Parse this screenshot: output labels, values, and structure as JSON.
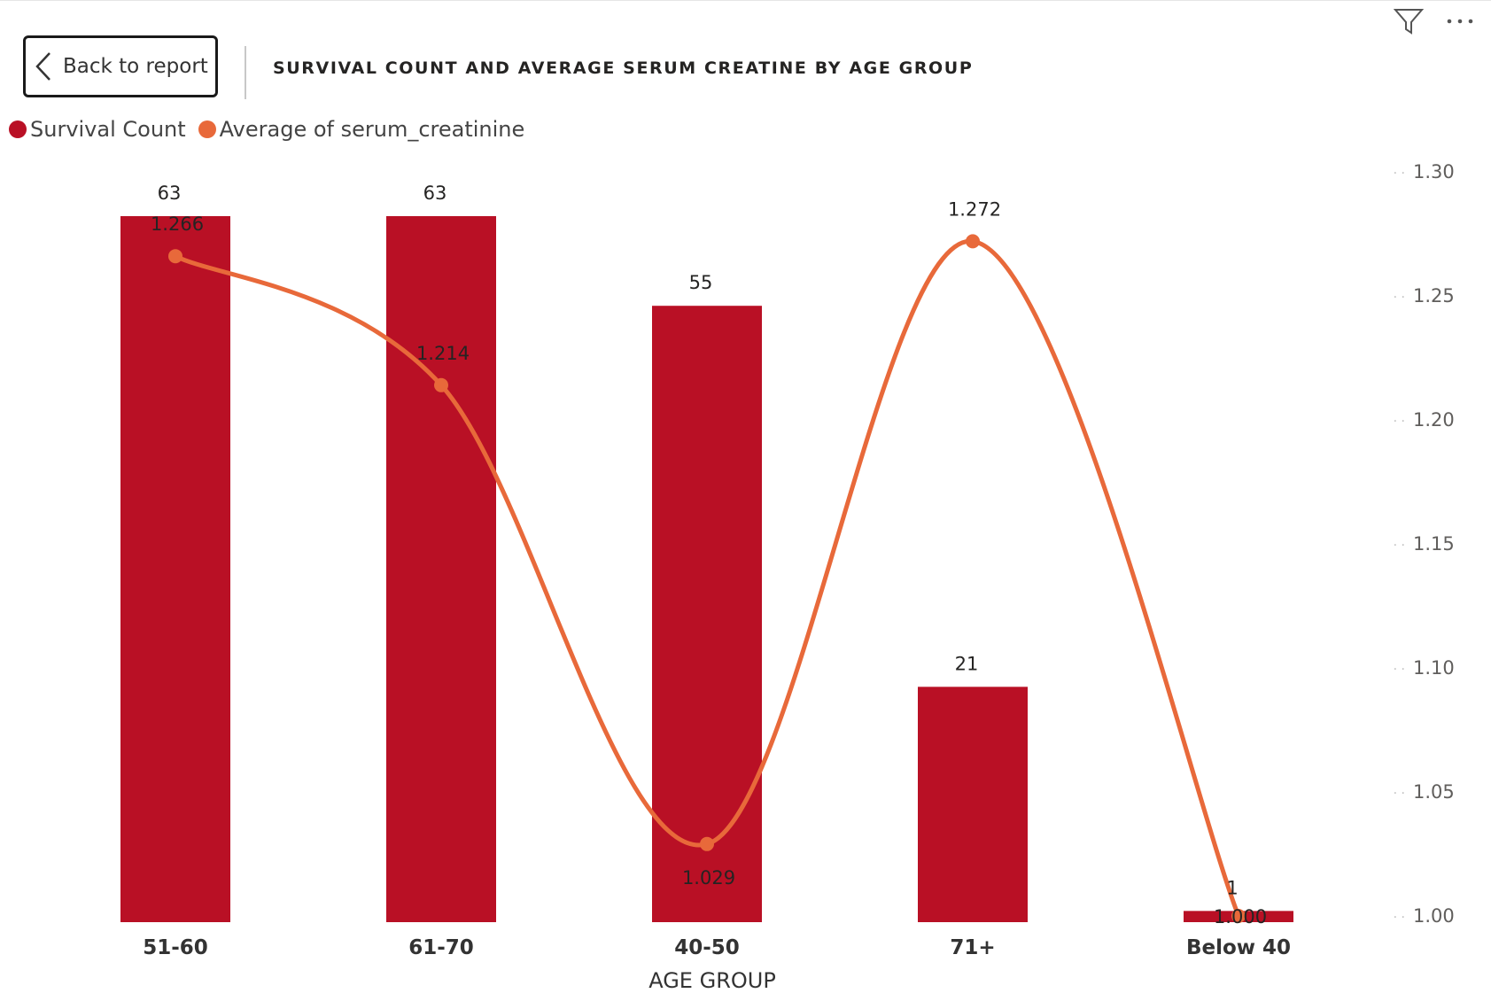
{
  "header": {
    "back_label": "Back to report",
    "title": "SURVIVAL COUNT AND AVERAGE SERUM CREATINE BY AGE GROUP"
  },
  "icons": {
    "back": "chevron-left-icon",
    "filter": "filter-icon",
    "more": "more-options-icon"
  },
  "colors": {
    "bar": "#B91025",
    "line": "#E8693A",
    "text": "#252423",
    "axis_text": "#605E5C"
  },
  "chart_data": {
    "type": "bar",
    "categories": [
      "51-60",
      "61-70",
      "40-50",
      "71+",
      "Below 40"
    ],
    "xlabel": "AGE GROUP",
    "series": [
      {
        "name": "Survival Count",
        "type": "bar",
        "values": [
          63,
          63,
          55,
          21,
          1
        ],
        "labels": [
          "63",
          "63",
          "55",
          "21",
          "1"
        ],
        "axis": "hidden-left",
        "ylim": [
          0,
          63
        ]
      },
      {
        "name": "Average of serum_creatinine",
        "type": "line",
        "values": [
          1.266,
          1.214,
          1.029,
          1.272,
          1.0
        ],
        "labels": [
          "1.266",
          "1.214",
          "1.029",
          "1.272",
          "1.000"
        ],
        "axis": "right",
        "ylim": [
          1.0,
          1.3
        ]
      }
    ],
    "y2_ticks": [
      "1.00",
      "1.05",
      "1.10",
      "1.15",
      "1.20",
      "1.25",
      "1.30"
    ],
    "legend": "top-left",
    "grid": false
  }
}
